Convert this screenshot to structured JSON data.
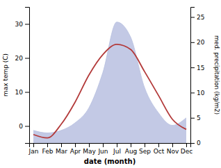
{
  "chart_data": {
    "type": "line",
    "categories": [
      "Jan",
      "Feb",
      "Mar",
      "Apr",
      "May",
      "Jun",
      "Jul",
      "Aug",
      "Sep",
      "Oct",
      "Nov",
      "Dec"
    ],
    "xlabel": "date (month)",
    "ylabel": "max temp (C)",
    "y2label": "med. precipitation (kg/m2)",
    "ylim": [
      -5,
      35
    ],
    "yticks": [
      0,
      10,
      20,
      30
    ],
    "y2lim": [
      0,
      27
    ],
    "y2ticks": [
      0,
      5,
      10,
      15,
      20,
      25
    ],
    "series": [
      {
        "type": "area",
        "axis": "y2",
        "color": "#b8c0e0",
        "values": [
          2.5,
          2.0,
          2.5,
          4,
          7,
          14,
          24,
          21,
          11,
          6,
          3.5,
          5
        ]
      },
      {
        "type": "line",
        "axis": "y",
        "color": "#b33a3a",
        "values": [
          -2.5,
          -3.5,
          0.5,
          7,
          15,
          21,
          24,
          22.5,
          16,
          9,
          2,
          -1
        ]
      }
    ]
  }
}
